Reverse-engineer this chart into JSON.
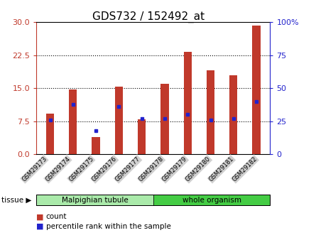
{
  "title": "GDS732 / 152492_at",
  "categories": [
    "GSM29173",
    "GSM29174",
    "GSM29175",
    "GSM29176",
    "GSM29177",
    "GSM29178",
    "GSM29179",
    "GSM29180",
    "GSM29181",
    "GSM29182"
  ],
  "count_values": [
    9.2,
    14.7,
    4.0,
    15.3,
    8.0,
    16.0,
    23.2,
    19.0,
    18.0,
    29.2
  ],
  "percentile_values": [
    26,
    38,
    18,
    36,
    27,
    27,
    30,
    26,
    27,
    40
  ],
  "ylim_left": [
    0,
    30
  ],
  "ylim_right": [
    0,
    100
  ],
  "yticks_left": [
    0,
    7.5,
    15,
    22.5,
    30
  ],
  "yticks_right": [
    0,
    25,
    50,
    75,
    100
  ],
  "bar_color": "#c0392b",
  "dot_color": "#2222cc",
  "tissue_groups": [
    {
      "label": "Malpighian tubule",
      "start": 0,
      "end": 4,
      "color": "#aaeaaa"
    },
    {
      "label": "whole organism",
      "start": 5,
      "end": 9,
      "color": "#44cc44"
    }
  ],
  "tissue_label": "tissue",
  "legend_count_label": "count",
  "legend_pct_label": "percentile rank within the sample",
  "background_color": "#ffffff",
  "plot_bg_color": "#ffffff",
  "tick_bg_color": "#d0d0d0",
  "title_fontsize": 11,
  "axis_fontsize": 8,
  "tick_label_fontsize": 7
}
